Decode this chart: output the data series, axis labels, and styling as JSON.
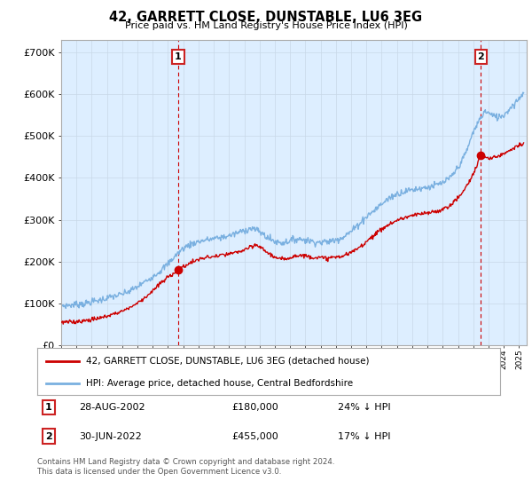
{
  "title": "42, GARRETT CLOSE, DUNSTABLE, LU6 3EG",
  "subtitle": "Price paid vs. HM Land Registry's House Price Index (HPI)",
  "ylim": [
    0,
    730000
  ],
  "xlim_start": 1995.0,
  "xlim_end": 2025.5,
  "hpi_color": "#7ab0e0",
  "price_color": "#cc0000",
  "plot_bg_color": "#ddeeff",
  "marker1_date": 2002.67,
  "marker1_price": 180000,
  "marker2_date": 2022.5,
  "marker2_price": 455000,
  "legend_label1": "42, GARRETT CLOSE, DUNSTABLE, LU6 3EG (detached house)",
  "legend_label2": "HPI: Average price, detached house, Central Bedfordshire",
  "footnote": "Contains HM Land Registry data © Crown copyright and database right 2024.\nThis data is licensed under the Open Government Licence v3.0.",
  "background_color": "#ffffff",
  "grid_color": "#c8d8e8"
}
